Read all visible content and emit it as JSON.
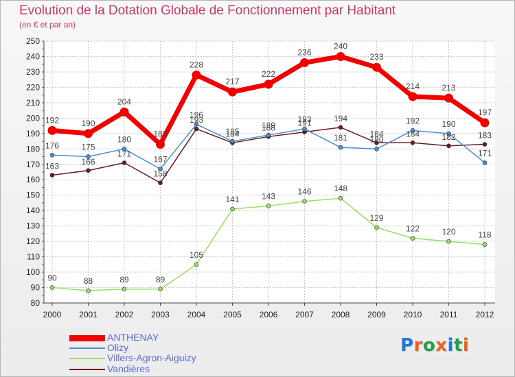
{
  "title": "Evolution de la Dotation Globale de Fonctionnement par Habitant",
  "subtitle": "(en € et par an)",
  "colors": {
    "title": "#c4386b",
    "legend_text": "#5a6ad8",
    "grid": "#c8c8c8",
    "axis_ticks": "#d0383a"
  },
  "logo": {
    "text": "Proxiti",
    "letter_colors": [
      "#1f7ad6",
      "#e8641e",
      "#23a14a",
      "#e8641e",
      "#1f7ad6",
      "#23a14a",
      "#e8641e"
    ]
  },
  "chart_data": {
    "type": "line",
    "title": "Evolution de la Dotation Globale de Fonctionnement par Habitant",
    "subtitle": "(en € et par an)",
    "x": [
      "2000",
      "2001",
      "2002",
      "2003",
      "2004",
      "2005",
      "2006",
      "2007",
      "2008",
      "2009",
      "2010",
      "2011",
      "2012"
    ],
    "ylim": [
      80,
      250
    ],
    "yticks": [
      80,
      90,
      100,
      110,
      120,
      130,
      140,
      150,
      160,
      170,
      180,
      190,
      200,
      210,
      220,
      230,
      240,
      250
    ],
    "grid": true,
    "legend_position": "bottom-left",
    "series": [
      {
        "name": "ANTHENAY",
        "color": "#f00000",
        "values": [
          192,
          190,
          204,
          183,
          228,
          217,
          222,
          236,
          240,
          233,
          214,
          213,
          197
        ],
        "labels": [
          "192",
          "190",
          "204",
          "183",
          "228",
          "217",
          "222",
          "236",
          "240",
          "233",
          "214",
          "213",
          "197"
        ]
      },
      {
        "name": "Olizy",
        "color": "#4a8fd0",
        "values": [
          176,
          175,
          180,
          167,
          196,
          185,
          189,
          193,
          181,
          180,
          192,
          190,
          171
        ],
        "labels": [
          "176",
          "175",
          "180",
          "167",
          "196",
          "185",
          "189",
          "193",
          "181",
          "180",
          "192",
          "190",
          "171"
        ]
      },
      {
        "name": "Villers-Agron-Aiguizy",
        "color": "#99dd66",
        "values": [
          90,
          88,
          89,
          89,
          105,
          141,
          143,
          146,
          148,
          129,
          122,
          120,
          118
        ],
        "labels": [
          "90",
          "88",
          "89",
          "89",
          "105",
          "141",
          "143",
          "146",
          "148",
          "129",
          "122",
          "120",
          "118"
        ]
      },
      {
        "name": "Vandières",
        "color": "#6a1a22",
        "values": [
          163,
          166,
          171,
          158,
          193,
          184,
          188,
          191,
          194,
          184,
          184,
          182,
          183
        ],
        "labels": [
          "163",
          "166",
          "171",
          "158",
          "193",
          "184",
          "188",
          "191",
          "194",
          "184",
          "184",
          "182",
          "183"
        ]
      }
    ]
  }
}
